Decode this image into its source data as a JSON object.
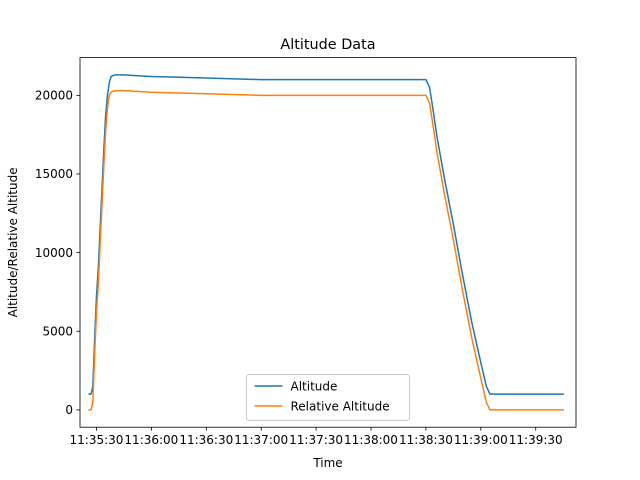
{
  "chart_data": {
    "type": "line",
    "title": "Altitude Data",
    "xlabel": "Time",
    "ylabel": "Altitude/Relative Altitude",
    "x_type": "time",
    "xlim": [
      "11:35:21",
      "11:39:52"
    ],
    "ylim": [
      -1100,
      22400
    ],
    "xticks": [
      "11:35:30",
      "11:36:00",
      "11:36:30",
      "11:37:00",
      "11:37:30",
      "11:38:00",
      "11:38:30",
      "11:39:00",
      "11:39:30"
    ],
    "yticks": [
      0,
      5000,
      10000,
      15000,
      20000
    ],
    "grid": false,
    "legend_position": "lower-center",
    "series": [
      {
        "name": "Altitude",
        "color": "#1f77b4",
        "x": [
          "11:35:26",
          "11:35:27",
          "11:35:28",
          "11:35:29",
          "11:35:30",
          "11:35:31",
          "11:35:32",
          "11:35:33",
          "11:35:34",
          "11:35:35",
          "11:35:36",
          "11:35:37",
          "11:35:38",
          "11:35:40",
          "11:35:45",
          "11:36:00",
          "11:36:30",
          "11:37:00",
          "11:37:30",
          "11:38:00",
          "11:38:30",
          "11:38:32",
          "11:38:34",
          "11:38:36",
          "11:38:40",
          "11:38:45",
          "11:38:50",
          "11:38:55",
          "11:39:00",
          "11:39:03",
          "11:39:05",
          "11:39:07",
          "11:39:10",
          "11:39:20",
          "11:39:30",
          "11:39:40",
          "11:39:45"
        ],
        "y": [
          1000,
          1000,
          1500,
          4500,
          7200,
          9000,
          11500,
          14000,
          16500,
          18700,
          20000,
          20800,
          21200,
          21300,
          21300,
          21200,
          21100,
          21000,
          21000,
          21000,
          21000,
          20500,
          19000,
          17400,
          14800,
          11800,
          8600,
          5600,
          3000,
          1500,
          1000,
          1000,
          1000,
          1000,
          1000,
          1000,
          1000
        ]
      },
      {
        "name": "Relative Altitude",
        "color": "#ff7f0e",
        "x": [
          "11:35:26",
          "11:35:27",
          "11:35:28",
          "11:35:29",
          "11:35:30",
          "11:35:31",
          "11:35:32",
          "11:35:33",
          "11:35:34",
          "11:35:35",
          "11:35:36",
          "11:35:37",
          "11:35:38",
          "11:35:40",
          "11:35:45",
          "11:36:00",
          "11:36:30",
          "11:37:00",
          "11:37:30",
          "11:38:00",
          "11:38:30",
          "11:38:32",
          "11:38:34",
          "11:38:36",
          "11:38:40",
          "11:38:45",
          "11:38:50",
          "11:38:55",
          "11:39:00",
          "11:39:03",
          "11:39:05",
          "11:39:07",
          "11:39:10",
          "11:39:20",
          "11:39:30",
          "11:39:40",
          "11:39:45"
        ],
        "y": [
          0,
          0,
          500,
          3500,
          6200,
          8000,
          10500,
          13000,
          15500,
          17700,
          19200,
          20000,
          20200,
          20300,
          20300,
          20200,
          20100,
          20000,
          20000,
          20000,
          20000,
          19500,
          18000,
          16400,
          13800,
          10800,
          7600,
          4600,
          2000,
          500,
          0,
          0,
          0,
          0,
          0,
          0,
          0
        ]
      }
    ]
  }
}
